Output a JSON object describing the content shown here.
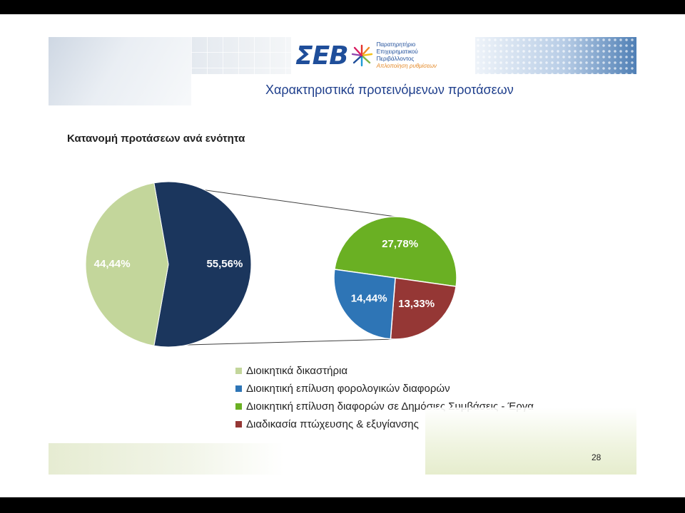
{
  "header": {
    "logo_mark": "ΣΕΒ",
    "logo_lines": [
      "Παρατηρητήριο",
      "Επιχειρηματικού",
      "Περιβάλλοντος"
    ],
    "logo_tagline": "Απλοποίηση ρυθμίσεων",
    "title": "Χαρακτηριστικά προτεινόμενων προτάσεων"
  },
  "section_title": "Κατανομή προτάσεων ανά ενότητα",
  "chart_data": {
    "type": "pie",
    "subtype": "pie-of-pie",
    "main_pie": {
      "slices": [
        {
          "legend_index": 0,
          "value": 44.44,
          "label": "44,44%",
          "color": "#c3d69b"
        },
        {
          "legend_index": -1,
          "value": 55.56,
          "label": "55,56%",
          "color": "#1b365d",
          "note": "Other (exploded into secondary pie)"
        }
      ]
    },
    "secondary_pie": {
      "slices": [
        {
          "legend_index": 2,
          "value": 27.78,
          "label": "27,78%",
          "color": "#6ab023"
        },
        {
          "legend_index": 3,
          "value": 13.33,
          "label": "13,33%",
          "color": "#953735"
        },
        {
          "legend_index": 1,
          "value": 14.44,
          "label": "14,44%",
          "color": "#2e75b6"
        }
      ]
    },
    "legend": [
      {
        "label": "Διοικητικά δικαστήρια",
        "color": "#c3d69b"
      },
      {
        "label": "Διοικητική επίλυση φορολογικών διαφορών",
        "color": "#2e75b6"
      },
      {
        "label": "Διοικητική επίλυση διαφορών σε Δημόσιες Συμβάσεις - Έργα",
        "color": "#6ab023"
      },
      {
        "label": "Διαδικασία πτώχευσης & εξυγίανσης",
        "color": "#953735"
      }
    ],
    "legend_position": "bottom"
  },
  "page_number": "28"
}
